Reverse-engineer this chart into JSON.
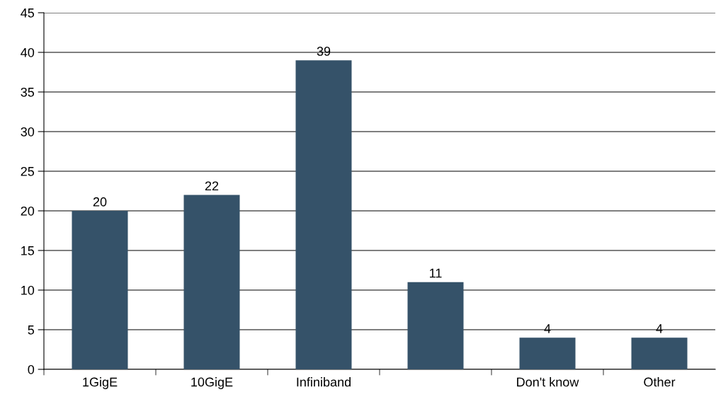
{
  "chart_data": {
    "type": "bar",
    "categories": [
      "1GigE",
      "10GigE",
      "Infiniband",
      null,
      "Don't know",
      "Other"
    ],
    "values": [
      20,
      22,
      39,
      11,
      4,
      4
    ],
    "color": "#355269",
    "ylim": [
      0,
      45
    ],
    "yticks": [
      0,
      5,
      10,
      15,
      20,
      25,
      30,
      35,
      40,
      45
    ],
    "grid": "y",
    "data_labels": true
  }
}
